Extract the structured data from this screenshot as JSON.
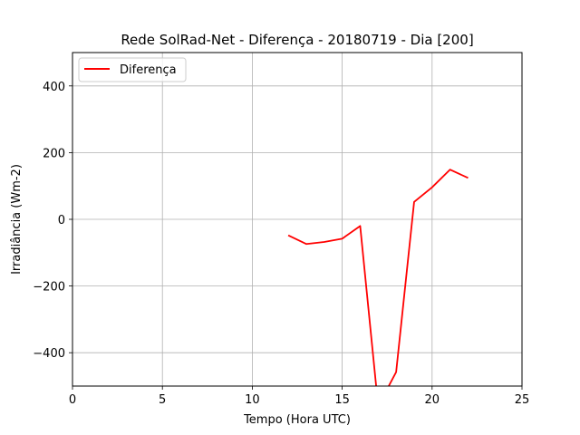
{
  "chart_data": {
    "type": "line",
    "title": "Rede SolRad-Net - Diferença - 20180719 - Dia [200]",
    "xlabel": "Tempo (Hora UTC)",
    "ylabel": "Irradiância (Wm-2)",
    "xlim": [
      0,
      25
    ],
    "ylim": [
      -500,
      500
    ],
    "xticks": [
      0,
      5,
      10,
      15,
      20,
      25
    ],
    "xtick_labels": [
      "0",
      "5",
      "10",
      "15",
      "20",
      "25"
    ],
    "yticks": [
      -400,
      -200,
      0,
      200,
      400
    ],
    "ytick_labels": [
      "−400",
      "−200",
      "0",
      "200",
      "400"
    ],
    "grid": true,
    "legend_position": "top-left",
    "series": [
      {
        "name": "Diferença",
        "color": "#ff0000",
        "x": [
          12,
          13,
          14,
          15,
          16,
          17,
          18,
          19,
          20,
          21,
          22
        ],
        "y": [
          -48,
          -74,
          -68,
          -58,
          -20,
          -560,
          -458,
          52,
          96,
          149,
          124
        ]
      }
    ]
  }
}
